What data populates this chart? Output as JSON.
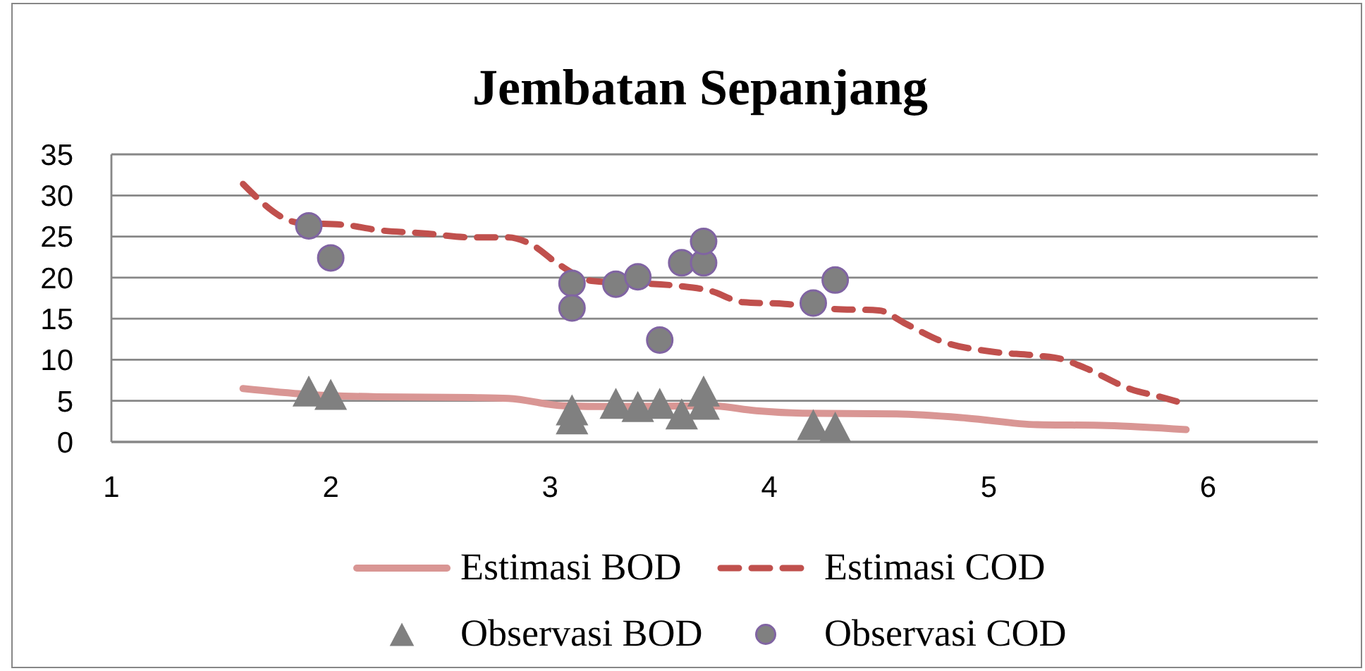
{
  "chart_data": {
    "type": "scatter",
    "title": "Jembatan Sepanjang",
    "xlim": [
      1,
      6.5
    ],
    "xticks": [
      1,
      2,
      3,
      4,
      5,
      6
    ],
    "ylim": [
      0,
      35
    ],
    "yticks": [
      0,
      5,
      10,
      15,
      20,
      25,
      30,
      35
    ],
    "grid": "y",
    "legend": "bottom",
    "series": [
      {
        "name": "Estimasi BOD",
        "type": "line",
        "color": "#d99694",
        "marker": "none",
        "line_style": "solid",
        "x": [
          1.6,
          1.89,
          2.21,
          2.64,
          2.81,
          3.06,
          3.28,
          3.73,
          3.94,
          4.15,
          4.58,
          4.9,
          5.22,
          5.54,
          5.9
        ],
        "values": [
          6.5,
          5.8,
          5.5,
          5.4,
          5.3,
          4.4,
          4.3,
          4.4,
          3.8,
          3.5,
          3.4,
          2.9,
          2.1,
          2.0,
          1.5
        ]
      },
      {
        "name": "Estimasi COD",
        "type": "line",
        "color": "#c0504d",
        "marker": "none",
        "line_style": "dashed",
        "x": [
          1.6,
          1.85,
          2.07,
          2.21,
          2.42,
          2.64,
          2.81,
          2.91,
          3.04,
          3.19,
          3.58,
          3.73,
          3.88,
          4.07,
          4.28,
          4.5,
          4.62,
          4.79,
          5.01,
          5.22,
          5.33,
          5.44,
          5.65,
          5.78,
          5.9
        ],
        "values": [
          31.4,
          26.7,
          26.4,
          25.8,
          25.4,
          24.9,
          24.9,
          24.1,
          21.6,
          19.6,
          19.0,
          18.4,
          17.0,
          16.8,
          16.2,
          16.0,
          14.4,
          12.2,
          11.0,
          10.5,
          10.1,
          9.0,
          6.4,
          5.5,
          4.6
        ]
      },
      {
        "name": "Observasi BOD",
        "color": "#808080",
        "marker": "triangle",
        "x": [
          1.9,
          2.0,
          3.1,
          3.1,
          3.3,
          3.4,
          3.5,
          3.6,
          3.7,
          3.7,
          4.2,
          4.3
        ],
        "values": [
          6.2,
          5.8,
          3.9,
          2.8,
          4.7,
          4.3,
          4.7,
          3.4,
          6.2,
          4.6,
          2.1,
          1.8
        ]
      },
      {
        "name": "Observasi COD",
        "color": "#808080",
        "marker": "circle",
        "x": [
          1.9,
          2.0,
          3.1,
          3.1,
          3.3,
          3.4,
          3.5,
          3.6,
          3.7,
          3.7,
          4.2,
          4.3
        ],
        "values": [
          26.3,
          22.4,
          19.3,
          16.3,
          19.2,
          20.1,
          12.4,
          21.8,
          21.8,
          24.4,
          16.9,
          19.7
        ]
      }
    ]
  }
}
